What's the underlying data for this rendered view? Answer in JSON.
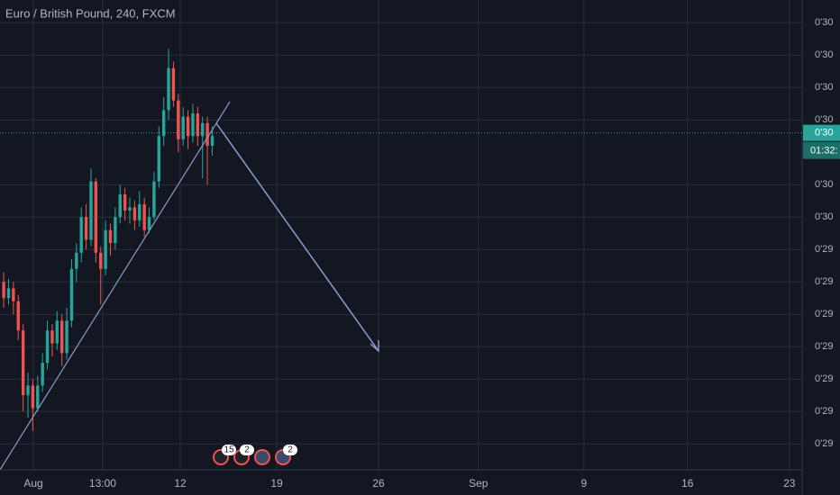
{
  "chart_data": {
    "type": "candlestick",
    "title": "Euro / British Pound, 240, FXCM",
    "candles": {
      "x": [
        -2.08,
        -1.74,
        -1.4,
        -1.06,
        -0.72,
        -0.38,
        -0.04,
        0.3,
        0.64,
        0.98,
        1.32,
        1.66,
        2.0,
        2.34,
        2.68,
        3.02,
        3.36,
        3.7,
        4.04,
        4.38,
        4.72,
        5.06,
        5.4,
        5.74,
        6.08,
        6.42,
        6.76,
        7.1,
        7.44,
        7.78,
        8.12,
        8.46,
        8.8,
        9.14,
        9.48,
        9.82,
        10.16,
        10.5,
        10.84,
        11.18,
        11.52,
        11.86,
        12.2,
        12.54
      ],
      "open": [
        0.9298,
        0.92975,
        0.92978,
        0.92974,
        0.92965,
        0.92945,
        0.92948,
        0.92941,
        0.92948,
        0.92955,
        0.92965,
        0.92961,
        0.92968,
        0.92958,
        0.92968,
        0.92984,
        0.92989,
        0.93,
        0.92993,
        0.93011,
        0.92989,
        0.92984,
        0.92996,
        0.92992,
        0.93,
        0.93007,
        0.93002,
        0.93003,
        0.92999,
        0.93004,
        0.92996,
        0.93,
        0.93011,
        0.93025,
        0.93033,
        0.93046,
        0.93036,
        0.93024,
        0.93031,
        0.93025,
        0.93032,
        0.93025,
        0.93029,
        0.93022
      ],
      "high": [
        0.92983,
        0.92981,
        0.9298,
        0.92976,
        0.92967,
        0.92952,
        0.9295,
        0.92951,
        0.92958,
        0.92968,
        0.92967,
        0.92971,
        0.9297,
        0.92972,
        0.92987,
        0.92992,
        0.93003,
        0.93004,
        0.93015,
        0.93012,
        0.92991,
        0.92999,
        0.92998,
        0.93003,
        0.9301,
        0.93009,
        0.93006,
        0.93005,
        0.93008,
        0.93006,
        0.93003,
        0.93014,
        0.93028,
        0.93037,
        0.93052,
        0.93048,
        0.93038,
        0.93034,
        0.93033,
        0.93035,
        0.93034,
        0.93031,
        0.93031,
        0.93028
      ],
      "low": [
        0.92972,
        0.92973,
        0.9297,
        0.92962,
        0.9294,
        0.92938,
        0.92934,
        0.9294,
        0.92946,
        0.92953,
        0.92957,
        0.92959,
        0.92954,
        0.92956,
        0.92966,
        0.9298,
        0.92986,
        0.9299,
        0.92991,
        0.92986,
        0.92973,
        0.92982,
        0.92988,
        0.9299,
        0.92998,
        0.92999,
        0.92998,
        0.92996,
        0.92997,
        0.92994,
        0.92995,
        0.92999,
        0.93009,
        0.93022,
        0.9303,
        0.93034,
        0.9302,
        0.93022,
        0.93021,
        0.93023,
        0.93022,
        0.93012,
        0.9301,
        0.93019
      ],
      "close": [
        0.92975,
        0.92978,
        0.92974,
        0.92965,
        0.92945,
        0.92948,
        0.92941,
        0.92948,
        0.92955,
        0.92965,
        0.92961,
        0.92968,
        0.92958,
        0.92968,
        0.92984,
        0.92989,
        0.93,
        0.92993,
        0.93011,
        0.92989,
        0.92984,
        0.92996,
        0.92992,
        0.93,
        0.93007,
        0.93002,
        0.93003,
        0.92999,
        0.93004,
        0.92996,
        0.93,
        0.93011,
        0.93025,
        0.93033,
        0.93046,
        0.93036,
        0.93024,
        0.93031,
        0.93025,
        0.93032,
        0.93025,
        0.93029,
        0.93022,
        0.93025
      ]
    },
    "up_color": "#26a69a",
    "down_color": "#ef5350",
    "xlim": [
      -2.34,
      53.9
    ],
    "xticks": [
      {
        "value": 0,
        "label": "Aug"
      },
      {
        "value": 4.86,
        "label": "13:00"
      },
      {
        "value": 10.3,
        "label": "12"
      },
      {
        "value": 17.06,
        "label": "19"
      },
      {
        "value": 24.2,
        "label": "26"
      },
      {
        "value": 31.2,
        "label": "Sep"
      },
      {
        "value": 38.6,
        "label": "9"
      },
      {
        "value": 45.86,
        "label": "16"
      },
      {
        "value": 53,
        "label": "23"
      }
    ],
    "ylim": [
      0.92922,
      0.93067
    ],
    "yticks": [
      {
        "value": 0.9306,
        "label": "0'30"
      },
      {
        "value": 0.9305,
        "label": "0'30"
      },
      {
        "value": 0.9304,
        "label": "0'30"
      },
      {
        "value": 0.9303,
        "label": "0'30"
      },
      {
        "value": 0.9301,
        "label": "0'30"
      },
      {
        "value": 0.93,
        "label": "0'30"
      },
      {
        "value": 0.9299,
        "label": "0'29"
      },
      {
        "value": 0.9298,
        "label": "0'29"
      },
      {
        "value": 0.9297,
        "label": "0'29"
      },
      {
        "value": 0.9296,
        "label": "0'29"
      },
      {
        "value": 0.9295,
        "label": "0'29"
      },
      {
        "value": 0.9294,
        "label": "0'29"
      },
      {
        "value": 0.9293,
        "label": "0'29"
      }
    ],
    "grid": true,
    "last_price": {
      "value": 0.93026,
      "label": "0'30"
    },
    "countdown": "01:32:",
    "event_counts": [
      15,
      2,
      2
    ]
  }
}
